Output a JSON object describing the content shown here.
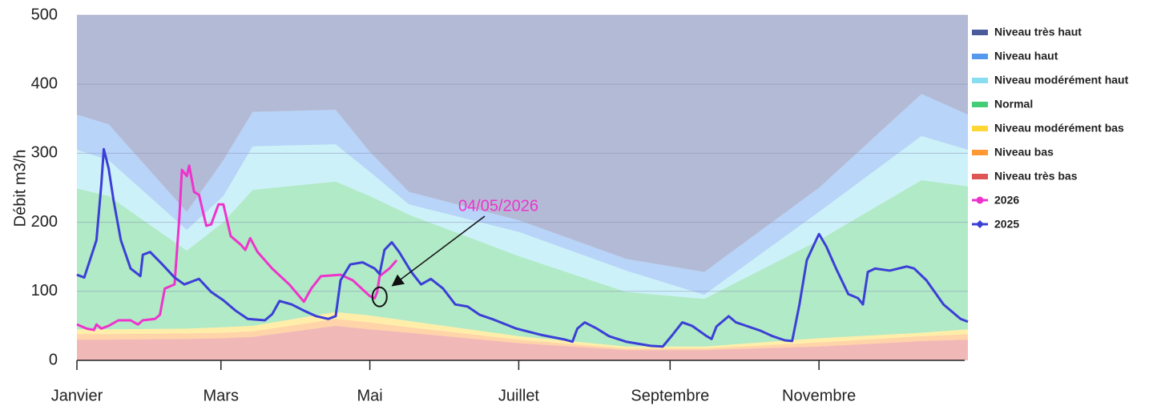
{
  "chart_data": {
    "type": "line",
    "ylabel": "Débit  m3/h",
    "xlim": [
      0,
      365
    ],
    "ylim": [
      0,
      500
    ],
    "xticks": [
      {
        "value": 0,
        "label": "Janvier"
      },
      {
        "value": 59,
        "label": "Mars"
      },
      {
        "value": 120,
        "label": "Mai"
      },
      {
        "value": 181,
        "label": "Juillet"
      },
      {
        "value": 243,
        "label": "Septembre"
      },
      {
        "value": 304,
        "label": "Novembre"
      }
    ],
    "yticks": [
      0,
      100,
      200,
      300,
      400,
      500
    ],
    "grid": true,
    "legend": "right",
    "annotation": {
      "text": "04/05/2026",
      "x": 124,
      "y": 92
    },
    "bands": {
      "x": [
        0,
        13,
        45,
        60,
        72,
        106,
        120,
        136,
        181,
        225,
        257,
        304,
        346,
        365
      ],
      "series": [
        {
          "name": "Niveau très bas",
          "color": "#dd5555",
          "values": [
            30,
            30,
            31,
            32,
            34,
            50,
            45,
            40,
            25,
            15,
            15,
            20,
            28,
            30
          ]
        },
        {
          "name": "Niveau bas",
          "color": "#ff9933",
          "values": [
            8,
            8,
            8,
            8,
            8,
            10,
            10,
            8,
            5,
            2,
            2,
            6,
            7,
            8
          ]
        },
        {
          "name": "Niveau modérément bas",
          "color": "#ffd633",
          "values": [
            7,
            7,
            7,
            8,
            8,
            10,
            10,
            9,
            5,
            3,
            3,
            6,
            5,
            7
          ]
        },
        {
          "name": "Normal",
          "color": "#44cc77",
          "values": [
            204,
            193,
            113,
            152,
            197,
            189,
            173,
            154,
            116,
            79,
            69,
            142,
            221,
            207
          ]
        },
        {
          "name": "Niveau modérément haut",
          "color": "#88ddf0",
          "values": [
            56,
            52,
            30,
            38,
            63,
            54,
            35,
            15,
            35,
            31,
            6,
            41,
            64,
            53
          ]
        },
        {
          "name": "Niveau haut",
          "color": "#5599ee",
          "values": [
            51,
            52,
            26,
            52,
            50,
            50,
            29,
            18,
            17,
            17,
            33,
            35,
            61,
            51
          ]
        },
        {
          "name": "Niveau très haut",
          "color": "#4a5a9a",
          "values": [
            144,
            158,
            285,
            210,
            140,
            137,
            198,
            256,
            297,
            353,
            372,
            250,
            114,
            144
          ]
        }
      ]
    },
    "series": [
      {
        "name": "2026",
        "color": "#ee33cc",
        "marker": "circle",
        "x": [
          0,
          4,
          7,
          8,
          10,
          13,
          17,
          22,
          25,
          27,
          32,
          34,
          36,
          40,
          42,
          43,
          45,
          46,
          48,
          50,
          53,
          55,
          58,
          60,
          63,
          67,
          69,
          71,
          74,
          80,
          87,
          93,
          96,
          100,
          108,
          113,
          120,
          122,
          123,
          124,
          128,
          131
        ],
        "values": [
          52,
          46,
          44,
          52,
          46,
          50,
          58,
          58,
          52,
          58,
          60,
          66,
          104,
          110,
          209,
          276,
          267,
          282,
          244,
          240,
          195,
          197,
          226,
          226,
          180,
          168,
          160,
          177,
          157,
          133,
          110,
          85,
          104,
          122,
          124,
          116,
          93,
          90,
          99,
          122,
          133,
          145
        ]
      },
      {
        "name": "2025",
        "color": "#3b3fd6",
        "marker": "diamond",
        "x": [
          0,
          3,
          8,
          10,
          11,
          13,
          15,
          18,
          22,
          26,
          27,
          30,
          35,
          40,
          44,
          50,
          55,
          60,
          65,
          70,
          77,
          80,
          83,
          88,
          93,
          98,
          103,
          106,
          108,
          112,
          117,
          122,
          124,
          126,
          129,
          132,
          137,
          141,
          145,
          150,
          155,
          160,
          165,
          170,
          180,
          190,
          200,
          203,
          205,
          208,
          213,
          218,
          225,
          235,
          240,
          244,
          248,
          252,
          258,
          260,
          262,
          267,
          270,
          275,
          280,
          285,
          290,
          293,
          296,
          299,
          302,
          304,
          307,
          311,
          316,
          320,
          322,
          324,
          327,
          333,
          340,
          343,
          348,
          355,
          362,
          365
        ],
        "values": [
          124,
          120,
          174,
          255,
          306,
          278,
          232,
          174,
          133,
          122,
          153,
          157,
          139,
          120,
          110,
          118,
          99,
          87,
          72,
          60,
          58,
          67,
          86,
          81,
          72,
          64,
          60,
          64,
          116,
          139,
          142,
          133,
          125,
          160,
          171,
          157,
          128,
          110,
          118,
          104,
          81,
          78,
          66,
          60,
          46,
          37,
          30,
          27,
          46,
          55,
          46,
          35,
          27,
          21,
          20,
          37,
          55,
          50,
          35,
          31,
          49,
          64,
          55,
          49,
          43,
          35,
          29,
          28,
          81,
          145,
          168,
          183,
          165,
          133,
          96,
          90,
          81,
          128,
          133,
          130,
          136,
          133,
          116,
          81,
          60,
          56
        ]
      }
    ]
  }
}
